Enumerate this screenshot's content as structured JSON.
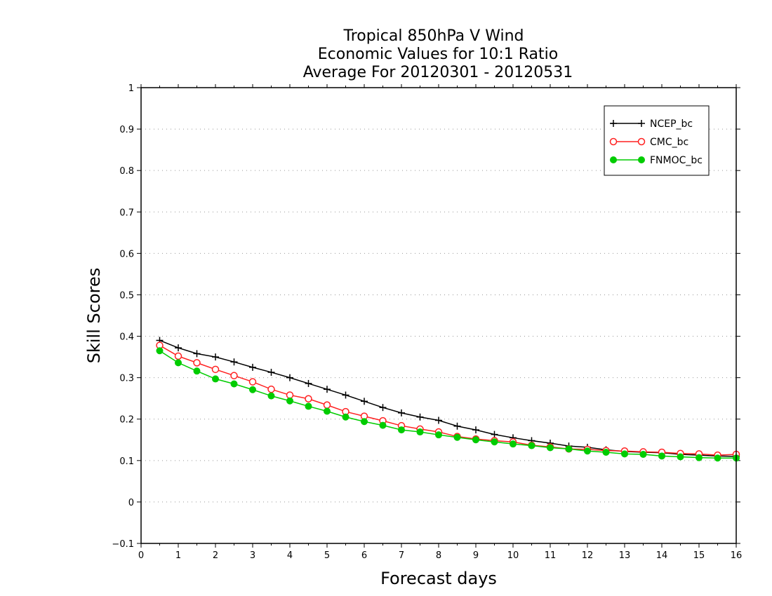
{
  "chart_data": {
    "type": "line",
    "title_lines": [
      "Tropical 850hPa V Wind",
      "Economic Values for 10:1 Ratio",
      "Average For 20120301 - 20120531"
    ],
    "xlabel": "Forecast days",
    "ylabel": "Skill Scores",
    "xlim": [
      0,
      16
    ],
    "ylim": [
      -0.1,
      1
    ],
    "x_ticks": [
      "0",
      "1",
      "2",
      "3",
      "4",
      "5",
      "6",
      "7",
      "8",
      "9",
      "10",
      "11",
      "12",
      "13",
      "14",
      "15",
      "16"
    ],
    "y_ticks": [
      "−0.1",
      "0",
      "0.1",
      "0.2",
      "0.3",
      "0.4",
      "0.5",
      "0.6",
      "0.7",
      "0.8",
      "0.9",
      "1"
    ],
    "grid": "horizontal dotted",
    "legend_position": "top-right",
    "x": [
      0.5,
      1,
      1.5,
      2,
      2.5,
      3,
      3.5,
      4,
      4.5,
      5,
      5.5,
      6,
      6.5,
      7,
      7.5,
      8,
      8.5,
      9,
      9.5,
      10,
      10.5,
      11,
      11.5,
      12,
      12.5,
      13,
      13.5,
      14,
      14.5,
      15,
      15.5,
      16
    ],
    "series": [
      {
        "name": "NCEP_bc",
        "color": "#000000",
        "marker": "plus",
        "values": [
          0.39,
          0.372,
          0.358,
          0.35,
          0.338,
          0.325,
          0.313,
          0.3,
          0.286,
          0.272,
          0.258,
          0.243,
          0.228,
          0.215,
          0.205,
          0.197,
          0.183,
          0.174,
          0.163,
          0.155,
          0.148,
          0.142,
          0.135,
          0.132,
          0.126,
          0.122,
          0.12,
          0.119,
          0.115,
          0.113,
          0.111,
          0.11
        ]
      },
      {
        "name": "CMC_bc",
        "color": "#ff2020",
        "marker": "open-circle",
        "values": [
          0.378,
          0.352,
          0.336,
          0.32,
          0.305,
          0.29,
          0.272,
          0.258,
          0.249,
          0.234,
          0.218,
          0.207,
          0.196,
          0.184,
          0.176,
          0.169,
          0.158,
          0.152,
          0.148,
          0.145,
          0.137,
          0.133,
          0.128,
          0.127,
          0.124,
          0.123,
          0.121,
          0.12,
          0.117,
          0.116,
          0.113,
          0.115
        ]
      },
      {
        "name": "FNMOC_bc",
        "color": "#00cc00",
        "marker": "filled-circle",
        "values": [
          0.365,
          0.336,
          0.316,
          0.297,
          0.285,
          0.271,
          0.256,
          0.244,
          0.231,
          0.219,
          0.205,
          0.194,
          0.185,
          0.174,
          0.169,
          0.162,
          0.156,
          0.15,
          0.145,
          0.14,
          0.136,
          0.131,
          0.128,
          0.123,
          0.12,
          0.116,
          0.115,
          0.111,
          0.109,
          0.107,
          0.106,
          0.106
        ]
      }
    ]
  }
}
